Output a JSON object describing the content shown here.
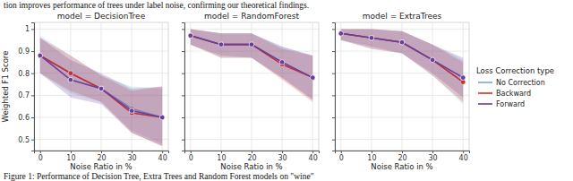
{
  "chart_data": [
    {
      "type": "line",
      "title": "model = DecisionTree",
      "x_label": "Noise Ratio in %",
      "y_label": "Weighted F1 Score",
      "annotations": [
        "tion improves performance of trees under label noise, confirming our theoretical findings.",
        "Figure 1: Performance of Decision Tree, Extra Trees and Random Forest models on \"wine\""
      ],
      "x": [
        0,
        10,
        20,
        30,
        40
      ],
      "xlim": [
        -2,
        42
      ],
      "xticks": [
        0,
        10,
        20,
        30,
        40
      ],
      "ylim": [
        0.45,
        1.03
      ],
      "yticks": [
        0.5,
        0.6,
        0.7,
        0.8,
        0.9,
        1
      ],
      "grid": true,
      "series": [
        {
          "name": "No Correction",
          "color": "#74add1",
          "marker": "o",
          "values": [
            0.88,
            0.8,
            0.73,
            0.64,
            0.6
          ],
          "lower": [
            0.8,
            0.71,
            0.67,
            0.54,
            0.48
          ],
          "upper": [
            0.97,
            0.88,
            0.79,
            0.74,
            0.73
          ]
        },
        {
          "name": "Backward",
          "color": "#d7301f",
          "marker": "o",
          "values": [
            0.88,
            0.8,
            0.73,
            0.62,
            0.6
          ],
          "lower": [
            0.8,
            0.72,
            0.67,
            0.53,
            0.47
          ],
          "upper": [
            0.96,
            0.88,
            0.79,
            0.72,
            0.74
          ]
        },
        {
          "name": "Forward",
          "color": "#6a3d9a",
          "marker": "o",
          "values": [
            0.88,
            0.77,
            0.73,
            0.63,
            0.6
          ],
          "lower": [
            0.8,
            0.69,
            0.66,
            0.53,
            0.47
          ],
          "upper": [
            0.96,
            0.86,
            0.8,
            0.73,
            0.74
          ]
        }
      ]
    },
    {
      "type": "line",
      "title": "model = RandomForest",
      "x_label": "Noise Ratio in %",
      "tick_labels": "x",
      "x": [
        0,
        10,
        20,
        30,
        40
      ],
      "xlim": [
        -2,
        42
      ],
      "xticks": [
        0,
        10,
        20,
        30,
        40
      ],
      "ylim": [
        0.45,
        1.03
      ],
      "yticks": [
        0.5,
        0.6,
        0.7,
        0.8,
        0.9,
        1
      ],
      "grid": true,
      "series": [
        {
          "name": "No Correction",
          "color": "#74add1",
          "marker": "o",
          "values": [
            0.97,
            0.93,
            0.93,
            0.85,
            0.78
          ],
          "lower": [
            0.93,
            0.87,
            0.87,
            0.78,
            0.68
          ],
          "upper": [
            1.0,
            0.98,
            0.98,
            0.92,
            0.88
          ]
        },
        {
          "name": "Backward",
          "color": "#d7301f",
          "marker": "o",
          "values": [
            0.97,
            0.93,
            0.93,
            0.84,
            0.78
          ],
          "lower": [
            0.93,
            0.87,
            0.87,
            0.77,
            0.67
          ],
          "upper": [
            1.0,
            0.98,
            0.98,
            0.91,
            0.88
          ]
        },
        {
          "name": "Forward",
          "color": "#6a3d9a",
          "marker": "o",
          "values": [
            0.97,
            0.93,
            0.93,
            0.85,
            0.78
          ],
          "lower": [
            0.93,
            0.88,
            0.87,
            0.78,
            0.68
          ],
          "upper": [
            1.0,
            0.98,
            0.98,
            0.92,
            0.88
          ]
        }
      ]
    },
    {
      "type": "line",
      "title": "model = ExtraTrees",
      "x_label": "Noise Ratio in %",
      "tick_labels": "x",
      "legend": "right",
      "legend_title": "Loss Correction type",
      "x": [
        0,
        10,
        20,
        30,
        40
      ],
      "xlim": [
        -2,
        42
      ],
      "xticks": [
        0,
        10,
        20,
        30,
        40
      ],
      "ylim": [
        0.45,
        1.03
      ],
      "yticks": [
        0.5,
        0.6,
        0.7,
        0.8,
        0.9,
        1
      ],
      "grid": true,
      "series": [
        {
          "name": "No Correction",
          "color": "#74add1",
          "marker": "o",
          "values": [
            0.98,
            0.96,
            0.94,
            0.86,
            0.76
          ],
          "lower": [
            0.95,
            0.91,
            0.89,
            0.79,
            0.66
          ],
          "upper": [
            1.0,
            1.0,
            0.99,
            0.93,
            0.86
          ]
        },
        {
          "name": "Backward",
          "color": "#d7301f",
          "marker": "o",
          "values": [
            0.98,
            0.96,
            0.94,
            0.86,
            0.76
          ],
          "lower": [
            0.95,
            0.91,
            0.89,
            0.79,
            0.67
          ],
          "upper": [
            1.0,
            1.0,
            0.99,
            0.93,
            0.85
          ]
        },
        {
          "name": "Forward",
          "color": "#6a3d9a",
          "marker": "o",
          "values": [
            0.98,
            0.96,
            0.94,
            0.86,
            0.78
          ],
          "lower": [
            0.95,
            0.92,
            0.89,
            0.8,
            0.69
          ],
          "upper": [
            1.0,
            1.0,
            0.99,
            0.93,
            0.87
          ]
        }
      ]
    }
  ]
}
